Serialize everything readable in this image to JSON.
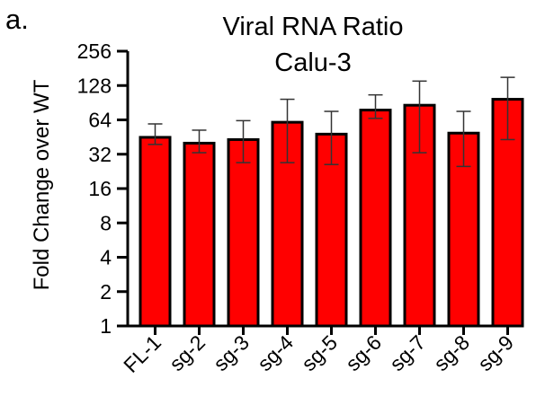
{
  "panel_label": "a.",
  "chart_data": {
    "type": "bar",
    "title": "Viral RNA Ratio",
    "subtitle": "Calu-3",
    "xlabel": "",
    "ylabel": "Fold Change over WT",
    "yscale": "log2",
    "ylim": [
      1,
      256
    ],
    "yticks": [
      1,
      2,
      4,
      8,
      16,
      32,
      64,
      128,
      256
    ],
    "categories": [
      "FL-1",
      "sg-2",
      "sg-3",
      "sg-4",
      "sg-5",
      "sg-6",
      "sg-7",
      "sg-8",
      "sg-9"
    ],
    "values": [
      45,
      40,
      43,
      61,
      48,
      78,
      86,
      49,
      97
    ],
    "error_low": [
      39,
      33,
      27,
      27,
      26,
      66,
      33,
      25,
      43
    ],
    "error_high": [
      59,
      52,
      63,
      97,
      76,
      106,
      140,
      76,
      151
    ],
    "bar_color": "#ff0000",
    "edge_color": "#000000",
    "grid": false,
    "legend": "none"
  }
}
